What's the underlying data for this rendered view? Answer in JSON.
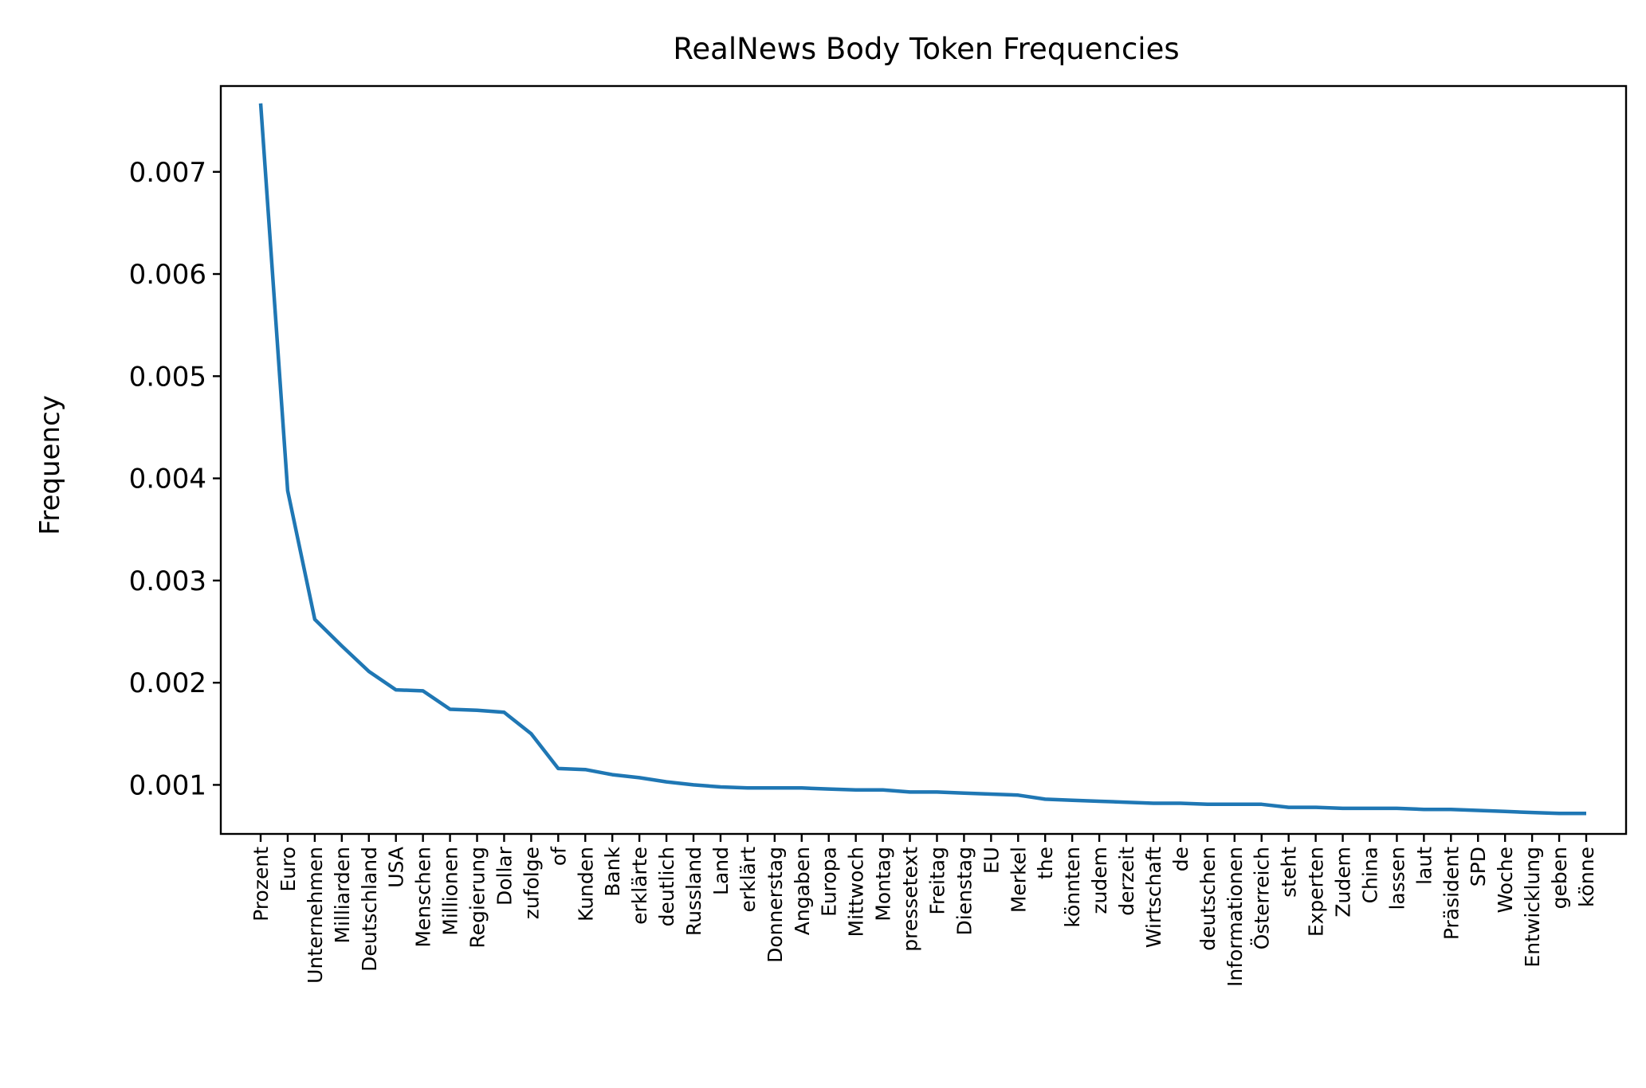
{
  "chart_data": {
    "type": "line",
    "title": "RealNews Body Token Frequencies",
    "xlabel": "",
    "ylabel": "Frequency",
    "ylim": [
      0.00052,
      0.00784
    ],
    "yticks": [
      0.001,
      0.002,
      0.003,
      0.004,
      0.005,
      0.006,
      0.007
    ],
    "ytick_labels": [
      "0.001",
      "0.002",
      "0.003",
      "0.004",
      "0.005",
      "0.006",
      "0.007"
    ],
    "grid": false,
    "line_color": "#1f77b4",
    "categories": [
      "Prozent",
      "Euro",
      "Unternehmen",
      "Milliarden",
      "Deutschland",
      "USA",
      "Menschen",
      "Millionen",
      "Regierung",
      "Dollar",
      "zufolge",
      "of",
      "Kunden",
      "Bank",
      "erklärte",
      "deutlich",
      "Russland",
      "Land",
      "erklärt",
      "Donnerstag",
      "Angaben",
      "Europa",
      "Mittwoch",
      "Montag",
      "pressetext",
      "Freitag",
      "Dienstag",
      "EU",
      "Merkel",
      "the",
      "könnten",
      "zudem",
      "derzeit",
      "Wirtschaft",
      "de",
      "deutschen",
      "Informationen",
      "Österreich",
      "steht",
      "Experten",
      "Zudem",
      "China",
      "lassen",
      "laut",
      "Präsident",
      "SPD",
      "Woche",
      "Entwicklung",
      "geben",
      "könne"
    ],
    "values": [
      0.00767,
      0.00388,
      0.00262,
      0.00236,
      0.00211,
      0.00193,
      0.00192,
      0.00174,
      0.00173,
      0.00171,
      0.0015,
      0.00116,
      0.00115,
      0.0011,
      0.00107,
      0.00103,
      0.001,
      0.00098,
      0.00097,
      0.00097,
      0.00097,
      0.00096,
      0.00095,
      0.00095,
      0.00093,
      0.00093,
      0.00092,
      0.00091,
      0.0009,
      0.00086,
      0.00085,
      0.00084,
      0.00083,
      0.00082,
      0.00082,
      0.00081,
      0.00081,
      0.00081,
      0.00078,
      0.00078,
      0.00077,
      0.00077,
      0.00077,
      0.00076,
      0.00076,
      0.00075,
      0.00074,
      0.00073,
      0.00072,
      0.00072
    ]
  }
}
